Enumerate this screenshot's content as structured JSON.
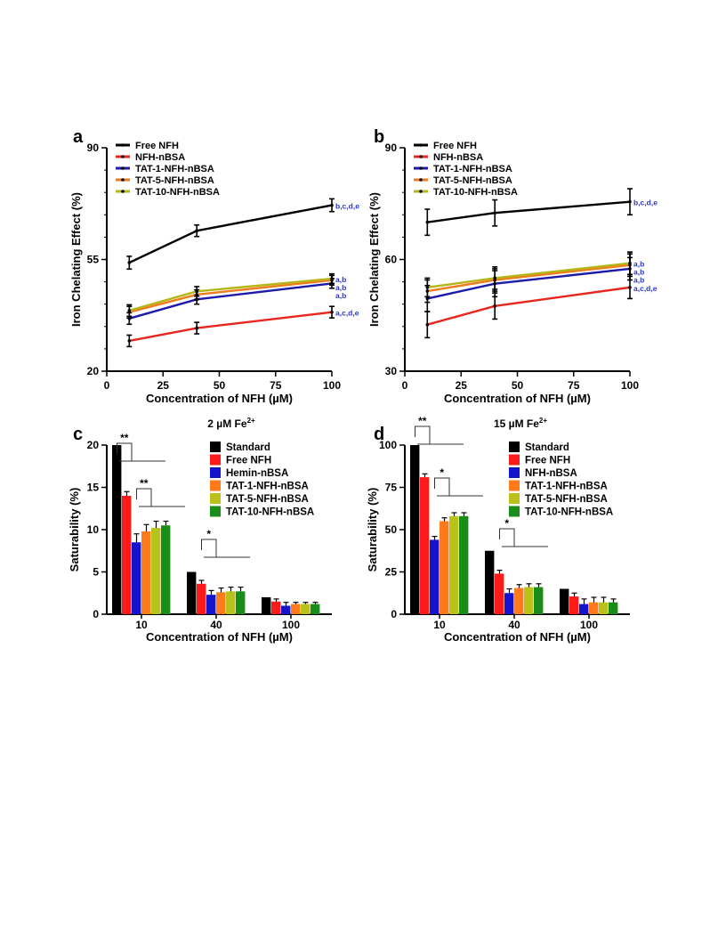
{
  "chart_data": [
    {
      "panel": "a",
      "type": "line",
      "xlabel": "Concentration of NFH (µM)",
      "ylabel": "Iron Chelating Effect (%)",
      "xlim": [
        0,
        100
      ],
      "ylim": [
        20,
        90
      ],
      "xticks": [
        "0",
        "25",
        "50",
        "75",
        "100"
      ],
      "yticks": [
        "20",
        "55",
        "90"
      ],
      "x": [
        10,
        40,
        100
      ],
      "legend": "top-left",
      "series": [
        {
          "name": "Free NFH",
          "color": "#000000",
          "values": [
            54,
            64,
            72
          ],
          "errors": [
            2,
            1.8,
            2
          ],
          "label": "b,c,d,e"
        },
        {
          "name": "NFH-nBSA",
          "color": "#e8261e",
          "values": [
            29.5,
            33.5,
            38.5
          ],
          "errors": [
            1.8,
            1.8,
            1.8
          ],
          "label": "a,c,d,e"
        },
        {
          "name": "TAT-1-NFH-nBSA",
          "color": "#1c1aa8",
          "values": [
            36.5,
            42.5,
            47.5
          ],
          "errors": [
            1.8,
            1.5,
            1.5
          ],
          "label": "a,b"
        },
        {
          "name": "TAT-5-NFH-nBSA",
          "color": "#f07b1e",
          "values": [
            38.5,
            44,
            48.5
          ],
          "errors": [
            1.8,
            1.5,
            1.5
          ],
          "label": "a,b"
        },
        {
          "name": "TAT-10-NFH-nBSA",
          "color": "#b5b517",
          "values": [
            39,
            45,
            49
          ],
          "errors": [
            1.8,
            1.5,
            1.5
          ],
          "label": "a,b"
        }
      ]
    },
    {
      "panel": "b",
      "type": "line",
      "xlabel": "Concentration of NFH (µM)",
      "ylabel": "Iron Chelating Effect (%)",
      "xlim": [
        0,
        100
      ],
      "ylim": [
        30,
        90
      ],
      "xticks": [
        "0",
        "25",
        "50",
        "75",
        "100"
      ],
      "yticks": [
        "30",
        "60",
        "90"
      ],
      "x": [
        10,
        40,
        100
      ],
      "legend": "top-left",
      "series": [
        {
          "name": "Free NFH",
          "color": "#000000",
          "values": [
            70,
            72.5,
            75.5
          ],
          "errors": [
            3.5,
            3.5,
            3.5
          ],
          "label": "b,c,d,e"
        },
        {
          "name": "NFH-nBSA",
          "color": "#e8261e",
          "values": [
            42.5,
            47.5,
            52.5
          ],
          "errors": [
            3.5,
            3.5,
            3
          ],
          "label": "a,c,d,e"
        },
        {
          "name": "TAT-1-NFH-nBSA",
          "color": "#1c1aa8",
          "values": [
            49.5,
            53.5,
            57.5
          ],
          "errors": [
            3.5,
            3.5,
            3
          ],
          "label": "a,b"
        },
        {
          "name": "TAT-5-NFH-nBSA",
          "color": "#f07b1e",
          "values": [
            51.5,
            54.5,
            58.5
          ],
          "errors": [
            3,
            3,
            3
          ],
          "label": "a,b"
        },
        {
          "name": "TAT-10-NFH-nBSA",
          "color": "#b5b517",
          "values": [
            52.5,
            55,
            59
          ],
          "errors": [
            2.5,
            3,
            3
          ],
          "label": "a,b"
        }
      ]
    },
    {
      "panel": "c",
      "type": "bar",
      "title": "2 µM Fe",
      "title_sup": "2+",
      "xlabel": "Concentration of NFH (µM)",
      "ylabel": "Saturability (%)",
      "ylim": [
        0,
        20
      ],
      "yticks": [
        "0",
        "5",
        "10",
        "15",
        "20"
      ],
      "categories": [
        "10",
        "40",
        "100"
      ],
      "legend": "top-right",
      "series": [
        {
          "name": "Standard",
          "color": "#000000",
          "values": [
            20,
            5,
            2
          ],
          "errors": [
            0,
            0,
            0
          ]
        },
        {
          "name": "Free NFH",
          "color": "#ff1a1a",
          "values": [
            14,
            3.6,
            1.5
          ],
          "errors": [
            0.5,
            0.4,
            0.3
          ]
        },
        {
          "name": "Hemin-nBSA",
          "color": "#1414cc",
          "values": [
            8.5,
            2.3,
            1
          ],
          "errors": [
            1,
            0.5,
            0.4
          ]
        },
        {
          "name": "TAT-1-NFH-nBSA",
          "color": "#ff7a1a",
          "values": [
            9.8,
            2.6,
            1.2
          ],
          "errors": [
            0.8,
            0.5,
            0.2
          ]
        },
        {
          "name": "TAT-5-NFH-nBSA",
          "color": "#b9c21a",
          "values": [
            10.2,
            2.7,
            1.2
          ],
          "errors": [
            0.8,
            0.5,
            0.2
          ]
        },
        {
          "name": "TAT-10-NFH-nBSA",
          "color": "#1a8c1a",
          "values": [
            10.5,
            2.7,
            1.2
          ],
          "errors": [
            0.5,
            0.5,
            0.2
          ]
        }
      ],
      "annotations": [
        "**",
        "**",
        "*"
      ]
    },
    {
      "panel": "d",
      "type": "bar",
      "title": "15 µM Fe",
      "title_sup": "2+",
      "xlabel": "Concentration of NFH (µM)",
      "ylabel": "Saturability (%)",
      "ylim": [
        0,
        100
      ],
      "yticks": [
        "0",
        "25",
        "50",
        "75",
        "100"
      ],
      "categories": [
        "10",
        "40",
        "100"
      ],
      "legend": "top-right",
      "series": [
        {
          "name": "Standard",
          "color": "#000000",
          "values": [
            100,
            37.5,
            15
          ],
          "errors": [
            0,
            0,
            0
          ]
        },
        {
          "name": "Free NFH",
          "color": "#ff1a1a",
          "values": [
            81,
            24,
            10.5
          ],
          "errors": [
            2,
            2,
            2
          ]
        },
        {
          "name": "NFH-nBSA",
          "color": "#1414cc",
          "values": [
            44,
            12.5,
            6
          ],
          "errors": [
            2,
            2.5,
            3
          ]
        },
        {
          "name": "TAT-1-NFH-nBSA",
          "color": "#ff7a1a",
          "values": [
            55,
            15.5,
            7
          ],
          "errors": [
            2,
            2,
            3
          ]
        },
        {
          "name": "TAT-5-NFH-nBSA",
          "color": "#b9c21a",
          "values": [
            58,
            16,
            7
          ],
          "errors": [
            2,
            2,
            3
          ]
        },
        {
          "name": "TAT-10-NFH-nBSA",
          "color": "#1a8c1a",
          "values": [
            58,
            16,
            7
          ],
          "errors": [
            2,
            2,
            2
          ]
        }
      ],
      "annotations": [
        "**",
        "*",
        "*"
      ]
    }
  ]
}
